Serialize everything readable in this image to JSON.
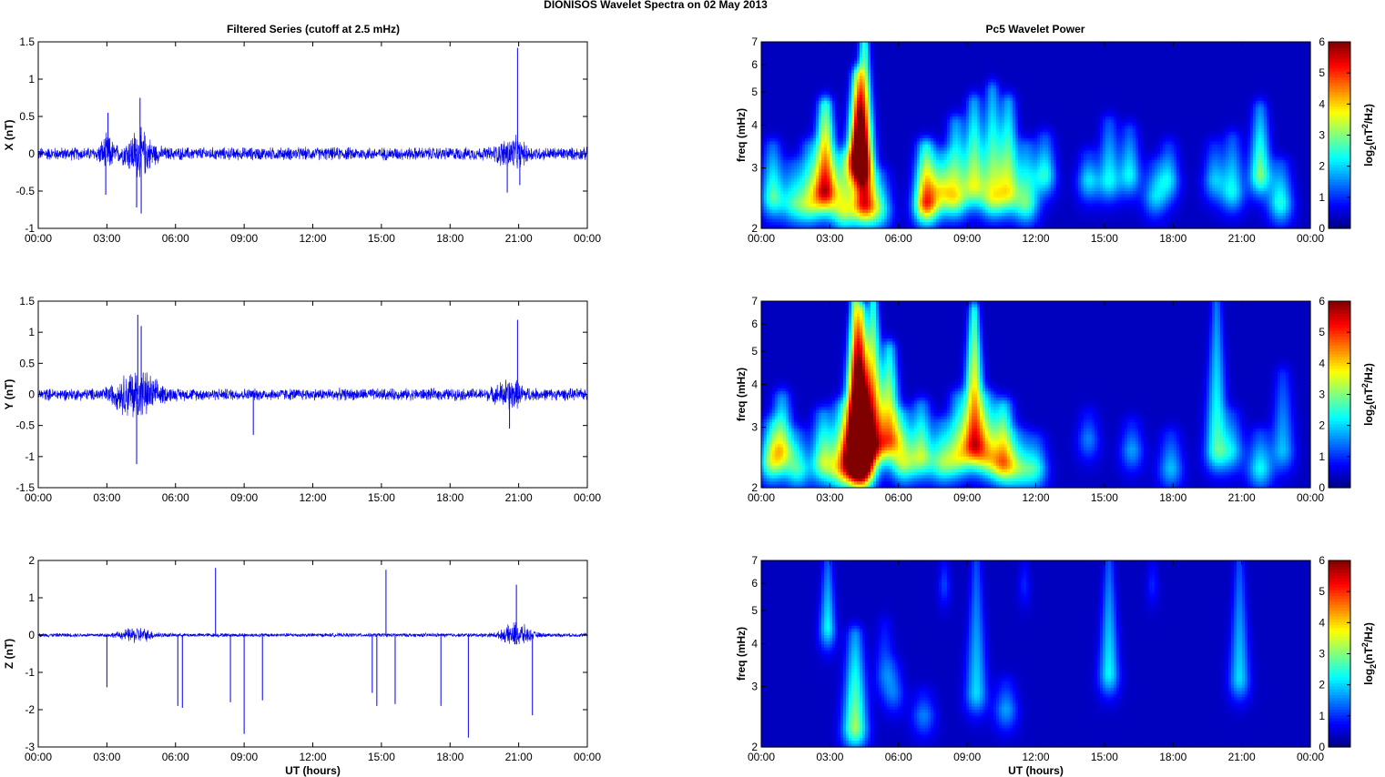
{
  "figure": {
    "title": "DIONISOS Wavelet Spectra on 02 May      2013",
    "left_title": "Filtered Series (cutoff at 2.5 mHz)",
    "right_title": "Pc5 Wavelet Power"
  },
  "colors": {
    "trace": "#0000ee",
    "spectrum_background": "#00008f",
    "colormap": "jet"
  },
  "chart_data": [
    {
      "type": "line",
      "panel": "x-series",
      "ylabel": "X (nT)",
      "xlabel": "",
      "x_ticks": [
        "00:00",
        "03:00",
        "06:00",
        "09:00",
        "12:00",
        "15:00",
        "18:00",
        "21:00",
        "00:00"
      ],
      "xlim_hours": [
        0,
        24
      ],
      "ylim": [
        -1,
        1.5
      ],
      "y_ticks": [
        "1.5",
        "1",
        "0.5",
        "0",
        "-0.5",
        "-1"
      ],
      "y_tick_values": [
        1.5,
        1,
        0.5,
        0,
        -0.5,
        -1
      ],
      "noise_amplitude": 0.1,
      "bursts": [
        {
          "center_hours": 3.0,
          "width_hours": 0.3,
          "amp": 0.2
        },
        {
          "center_hours": 4.4,
          "width_hours": 0.6,
          "amp": 0.3
        },
        {
          "center_hours": 20.7,
          "width_hours": 0.6,
          "amp": 0.18
        }
      ],
      "spikes": [
        {
          "x_hours": 2.95,
          "y": -0.55
        },
        {
          "x_hours": 3.05,
          "y": 0.55
        },
        {
          "x_hours": 4.45,
          "y": 0.75
        },
        {
          "x_hours": 4.5,
          "y": -0.8
        },
        {
          "x_hours": 4.3,
          "y": -0.72
        },
        {
          "x_hours": 20.5,
          "y": -0.52
        },
        {
          "x_hours": 20.95,
          "y": 1.42
        },
        {
          "x_hours": 21.05,
          "y": -0.42
        }
      ]
    },
    {
      "type": "line",
      "panel": "y-series",
      "ylabel": "Y (nT)",
      "xlabel": "",
      "x_ticks": [
        "00:00",
        "03:00",
        "06:00",
        "09:00",
        "12:00",
        "15:00",
        "18:00",
        "21:00",
        "00:00"
      ],
      "xlim_hours": [
        0,
        24
      ],
      "ylim": [
        -1.5,
        1.5
      ],
      "y_ticks": [
        "1.5",
        "1",
        "0.5",
        "0",
        "-0.5",
        "-1",
        "-1.5"
      ],
      "y_tick_values": [
        1.5,
        1,
        0.5,
        0,
        -0.5,
        -1,
        -1.5
      ],
      "noise_amplitude": 0.11,
      "bursts": [
        {
          "center_hours": 4.3,
          "width_hours": 0.9,
          "amp": 0.4
        },
        {
          "center_hours": 20.6,
          "width_hours": 0.6,
          "amp": 0.2
        }
      ],
      "spikes": [
        {
          "x_hours": 4.35,
          "y": 1.28
        },
        {
          "x_hours": 4.3,
          "y": -1.12
        },
        {
          "x_hours": 4.5,
          "y": 1.1
        },
        {
          "x_hours": 9.4,
          "y": -0.65
        },
        {
          "x_hours": 20.95,
          "y": 1.2
        },
        {
          "x_hours": 20.6,
          "y": -0.55
        }
      ]
    },
    {
      "type": "line",
      "panel": "z-series",
      "ylabel": "Z (nT)",
      "xlabel": "UT (hours)",
      "x_ticks": [
        "00:00",
        "03:00",
        "06:00",
        "09:00",
        "12:00",
        "15:00",
        "18:00",
        "21:00",
        "00:00"
      ],
      "xlim_hours": [
        0,
        24
      ],
      "ylim": [
        -3,
        2
      ],
      "y_ticks": [
        "2",
        "1",
        "0",
        "-1",
        "-2",
        "-3"
      ],
      "y_tick_values": [
        2,
        1,
        0,
        -1,
        -2,
        -3
      ],
      "noise_amplitude": 0.06,
      "bursts": [
        {
          "center_hours": 4.3,
          "width_hours": 0.7,
          "amp": 0.2
        },
        {
          "center_hours": 20.9,
          "width_hours": 0.6,
          "amp": 0.35
        }
      ],
      "spikes": [
        {
          "x_hours": 3.0,
          "y": -1.4
        },
        {
          "x_hours": 6.1,
          "y": -1.9
        },
        {
          "x_hours": 6.3,
          "y": -1.95
        },
        {
          "x_hours": 7.75,
          "y": 1.8
        },
        {
          "x_hours": 8.4,
          "y": -1.8
        },
        {
          "x_hours": 9.0,
          "y": -2.65
        },
        {
          "x_hours": 9.8,
          "y": -1.75
        },
        {
          "x_hours": 14.6,
          "y": -1.55
        },
        {
          "x_hours": 14.8,
          "y": -1.9
        },
        {
          "x_hours": 15.2,
          "y": 1.75
        },
        {
          "x_hours": 15.6,
          "y": -1.85
        },
        {
          "x_hours": 17.6,
          "y": -1.9
        },
        {
          "x_hours": 18.8,
          "y": -2.75
        },
        {
          "x_hours": 20.9,
          "y": 1.35
        },
        {
          "x_hours": 21.6,
          "y": -2.15
        }
      ]
    },
    {
      "type": "heatmap",
      "panel": "x-spectrum",
      "ylabel": "freq (mHz)",
      "xlabel": "",
      "x_ticks": [
        "00:00",
        "03:00",
        "06:00",
        "09:00",
        "12:00",
        "15:00",
        "18:00",
        "21:00",
        "00:00"
      ],
      "xlim_hours": [
        0,
        24
      ],
      "ylim_mhz": [
        2,
        7
      ],
      "y_scale": "log",
      "y_ticks": [
        "7",
        "6",
        "5",
        "4",
        "3",
        "2"
      ],
      "y_tick_values": [
        7,
        6,
        5,
        4,
        3,
        2
      ],
      "colorbar_label": "log2(nT2/Hz)",
      "colorbar_ticks": [
        "6",
        "5",
        "4",
        "3",
        "2",
        "1",
        "0"
      ],
      "clim": [
        0,
        6
      ],
      "blobs": [
        {
          "t": 0.5,
          "f": 2.5,
          "amp": 2.5,
          "top": 3.4
        },
        {
          "t": 1.4,
          "f": 2.4,
          "amp": 2.0,
          "top": 3.0
        },
        {
          "t": 2.1,
          "f": 2.4,
          "amp": 2.6,
          "top": 3.4
        },
        {
          "t": 2.8,
          "f": 2.6,
          "amp": 5.3,
          "top": 4.5
        },
        {
          "t": 3.6,
          "f": 2.3,
          "amp": 3.0,
          "top": 3.2
        },
        {
          "t": 4.2,
          "f": 3.2,
          "amp": 5.6,
          "top": 5.5
        },
        {
          "t": 4.5,
          "f": 2.4,
          "amp": 5.0,
          "top": 7.0
        },
        {
          "t": 5.2,
          "f": 2.3,
          "amp": 2.0,
          "top": 2.8
        },
        {
          "t": 7.2,
          "f": 2.4,
          "amp": 4.8,
          "top": 3.4
        },
        {
          "t": 7.9,
          "f": 2.6,
          "amp": 2.5,
          "top": 3.2
        },
        {
          "t": 8.5,
          "f": 2.5,
          "amp": 3.0,
          "top": 4.0
        },
        {
          "t": 9.3,
          "f": 2.7,
          "amp": 3.2,
          "top": 4.6
        },
        {
          "t": 10.1,
          "f": 2.5,
          "amp": 3.0,
          "top": 5.0
        },
        {
          "t": 10.8,
          "f": 2.6,
          "amp": 3.2,
          "top": 4.6
        },
        {
          "t": 11.6,
          "f": 2.4,
          "amp": 2.5,
          "top": 3.4
        },
        {
          "t": 12.4,
          "f": 2.9,
          "amp": 2.2,
          "top": 3.6
        },
        {
          "t": 14.3,
          "f": 2.8,
          "amp": 1.8,
          "top": 3.2
        },
        {
          "t": 15.2,
          "f": 2.8,
          "amp": 2.0,
          "top": 4.0
        },
        {
          "t": 16.1,
          "f": 2.9,
          "amp": 2.0,
          "top": 3.8
        },
        {
          "t": 17.2,
          "f": 2.5,
          "amp": 1.6,
          "top": 3.0
        },
        {
          "t": 17.8,
          "f": 2.8,
          "amp": 1.8,
          "top": 3.4
        },
        {
          "t": 19.8,
          "f": 2.8,
          "amp": 1.6,
          "top": 3.4
        },
        {
          "t": 20.6,
          "f": 2.6,
          "amp": 2.0,
          "top": 3.6
        },
        {
          "t": 21.8,
          "f": 2.9,
          "amp": 2.8,
          "top": 4.4
        },
        {
          "t": 22.7,
          "f": 2.4,
          "amp": 2.2,
          "top": 3.0
        }
      ]
    },
    {
      "type": "heatmap",
      "panel": "y-spectrum",
      "ylabel": "freq (mHz)",
      "xlabel": "",
      "x_ticks": [
        "00:00",
        "03:00",
        "06:00",
        "09:00",
        "12:00",
        "15:00",
        "18:00",
        "21:00",
        "00:00"
      ],
      "xlim_hours": [
        0,
        24
      ],
      "ylim_mhz": [
        2,
        7
      ],
      "y_scale": "log",
      "y_ticks": [
        "7",
        "6",
        "5",
        "4",
        "3",
        "2"
      ],
      "y_tick_values": [
        7,
        6,
        5,
        4,
        3,
        2
      ],
      "colorbar_label": "log2(nT2/Hz)",
      "colorbar_ticks": [
        "6",
        "5",
        "4",
        "3",
        "2",
        "1",
        "0"
      ],
      "clim": [
        0,
        6
      ],
      "blobs": [
        {
          "t": 0.4,
          "f": 2.4,
          "amp": 2.5,
          "top": 3.0
        },
        {
          "t": 0.9,
          "f": 2.6,
          "amp": 3.0,
          "top": 3.6
        },
        {
          "t": 1.6,
          "f": 2.3,
          "amp": 2.2,
          "top": 2.8
        },
        {
          "t": 2.7,
          "f": 2.4,
          "amp": 3.0,
          "top": 3.2
        },
        {
          "t": 3.5,
          "f": 2.3,
          "amp": 3.0,
          "top": 3.4
        },
        {
          "t": 4.1,
          "f": 2.5,
          "amp": 5.9,
          "top": 7.0
        },
        {
          "t": 4.4,
          "f": 2.3,
          "amp": 5.7,
          "top": 6.5
        },
        {
          "t": 4.9,
          "f": 2.7,
          "amp": 4.5,
          "top": 7.0
        },
        {
          "t": 5.6,
          "f": 2.8,
          "amp": 4.0,
          "top": 5.0
        },
        {
          "t": 6.2,
          "f": 2.4,
          "amp": 2.8,
          "top": 3.2
        },
        {
          "t": 7.0,
          "f": 2.5,
          "amp": 3.0,
          "top": 3.4
        },
        {
          "t": 7.9,
          "f": 2.4,
          "amp": 2.5,
          "top": 3.0
        },
        {
          "t": 8.6,
          "f": 2.5,
          "amp": 2.8,
          "top": 3.6
        },
        {
          "t": 9.3,
          "f": 2.7,
          "amp": 4.8,
          "top": 6.5
        },
        {
          "t": 9.9,
          "f": 2.5,
          "amp": 2.8,
          "top": 3.6
        },
        {
          "t": 10.6,
          "f": 2.4,
          "amp": 4.0,
          "top": 3.4
        },
        {
          "t": 11.3,
          "f": 2.3,
          "amp": 2.0,
          "top": 2.8
        },
        {
          "t": 12.0,
          "f": 2.3,
          "amp": 2.0,
          "top": 2.7
        },
        {
          "t": 14.3,
          "f": 2.8,
          "amp": 1.2,
          "top": 3.2
        },
        {
          "t": 16.2,
          "f": 2.6,
          "amp": 1.4,
          "top": 3.0
        },
        {
          "t": 17.9,
          "f": 2.3,
          "amp": 1.6,
          "top": 2.8
        },
        {
          "t": 19.9,
          "f": 2.6,
          "amp": 2.4,
          "top": 7.0
        },
        {
          "t": 20.6,
          "f": 2.6,
          "amp": 1.6,
          "top": 3.2
        },
        {
          "t": 21.8,
          "f": 2.3,
          "amp": 2.0,
          "top": 2.8
        },
        {
          "t": 22.8,
          "f": 2.6,
          "amp": 1.6,
          "top": 4.2
        }
      ]
    },
    {
      "type": "heatmap",
      "panel": "z-spectrum",
      "ylabel": "freq (mHz)",
      "xlabel": "UT (hours)",
      "x_ticks": [
        "00:00",
        "03:00",
        "06:00",
        "09:00",
        "12:00",
        "15:00",
        "18:00",
        "21:00",
        "00:00"
      ],
      "xlim_hours": [
        0,
        24
      ],
      "ylim_mhz": [
        2,
        7
      ],
      "y_scale": "log",
      "y_ticks": [
        "7",
        "6",
        "5",
        "4",
        "3",
        "2"
      ],
      "y_tick_values": [
        7,
        6,
        5,
        4,
        3,
        2
      ],
      "colorbar_label": "log2(nT2/Hz)",
      "colorbar_ticks": [
        "6",
        "5",
        "4",
        "3",
        "2",
        "1",
        "0"
      ],
      "clim": [
        0,
        6
      ],
      "blobs": [
        {
          "t": 2.9,
          "f": 4.5,
          "amp": 2.0,
          "top": 7.0
        },
        {
          "t": 4.1,
          "f": 2.3,
          "amp": 3.0,
          "top": 4.2
        },
        {
          "t": 5.4,
          "f": 3.3,
          "amp": 1.0,
          "top": 4.5
        },
        {
          "t": 5.8,
          "f": 2.9,
          "amp": 1.0,
          "top": 3.4
        },
        {
          "t": 7.1,
          "f": 2.5,
          "amp": 1.2,
          "top": 2.8
        },
        {
          "t": 9.4,
          "f": 2.9,
          "amp": 1.8,
          "top": 7.0
        },
        {
          "t": 10.7,
          "f": 2.6,
          "amp": 1.4,
          "top": 3.0
        },
        {
          "t": 15.2,
          "f": 3.3,
          "amp": 2.0,
          "top": 7.0
        },
        {
          "t": 20.9,
          "f": 3.2,
          "amp": 1.8,
          "top": 7.0
        },
        {
          "t": 8.0,
          "f": 6.0,
          "amp": 0.8,
          "top": 7.0
        },
        {
          "t": 11.5,
          "f": 6.0,
          "amp": 0.6,
          "top": 7.0
        },
        {
          "t": 17.1,
          "f": 6.0,
          "amp": 0.6,
          "top": 7.0
        }
      ]
    }
  ]
}
